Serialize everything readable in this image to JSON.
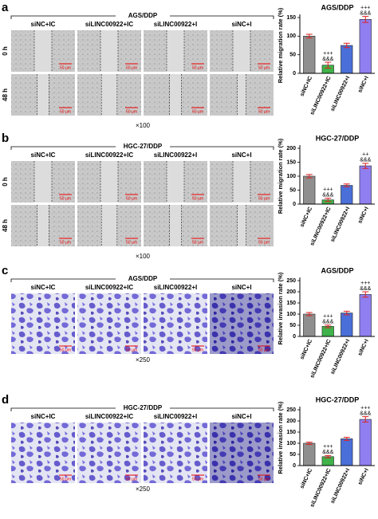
{
  "panels": [
    {
      "label": "a",
      "cell_line": "AGS/DDP",
      "columns": [
        "siNC+IC",
        "siLINC00922+IC",
        "siLINC00922+I",
        "siNC+I"
      ],
      "rows": [
        "0 h",
        "48 h"
      ],
      "scale_bar": "50 μm",
      "magnification": "×100"
    },
    {
      "label": "b",
      "cell_line": "HGC-27/DDP",
      "columns": [
        "siNC+IC",
        "siLINC00922+IC",
        "siLINC00922+I",
        "siNC+I"
      ],
      "rows": [
        "0 h",
        "48 h"
      ],
      "scale_bar": "50 μm",
      "magnification": "×100"
    },
    {
      "label": "c",
      "cell_line": "AGS/DDP",
      "columns": [
        "siNC+IC",
        "siLINC00922+IC",
        "siLINC00922+I",
        "siNC+I"
      ],
      "scale_bar": "50 μm",
      "magnification": "×250"
    },
    {
      "label": "d",
      "cell_line": "HGC-27/DDP",
      "columns": [
        "siNC+IC",
        "siLINC00922+IC",
        "siLINC00922+I",
        "siNC+I"
      ],
      "scale_bar": "50 μm",
      "magnification": "×250"
    }
  ],
  "chart_data": [
    {
      "type": "bar",
      "title": "AGS/DDP",
      "y_label": "Relative migration rate (%)",
      "categories": [
        "siNC+IC",
        "siLINC00922+IC",
        "siLINC00922+I",
        "siNC+I"
      ],
      "values": [
        100,
        22,
        75,
        145
      ],
      "errors": [
        5,
        8,
        6,
        8
      ],
      "colors": [
        "#8f8f8f",
        "#3fb24a",
        "#4a6fd8",
        "#8f7ff0"
      ],
      "annotations": [
        null,
        [
          "+++",
          "&&&"
        ],
        null,
        [
          "+++",
          "&&&"
        ]
      ],
      "ylim": [
        0,
        150
      ],
      "yticks": [
        0,
        50,
        100,
        150
      ]
    },
    {
      "type": "bar",
      "title": "HGC-27/DDP",
      "y_label": "Relative migration rate (%)",
      "categories": [
        "siNC+IC",
        "siLINC00922+IC",
        "siLINC00922+I",
        "siNC+I"
      ],
      "values": [
        100,
        15,
        67,
        137
      ],
      "errors": [
        6,
        6,
        5,
        9
      ],
      "colors": [
        "#8f8f8f",
        "#3fb24a",
        "#4a6fd8",
        "#8f7ff0"
      ],
      "annotations": [
        null,
        [
          "+++",
          "&&&"
        ],
        null,
        [
          "++",
          "&&&"
        ]
      ],
      "ylim": [
        0,
        200
      ],
      "yticks": [
        0,
        50,
        100,
        150,
        200
      ]
    },
    {
      "type": "bar",
      "title": "AGS/DDP",
      "y_label": "Relative invasion rate (%)",
      "categories": [
        "siNC+IC",
        "siLINC00922+IC",
        "siLINC00922+I",
        "siNC+I"
      ],
      "values": [
        100,
        45,
        105,
        188
      ],
      "errors": [
        7,
        6,
        8,
        12
      ],
      "colors": [
        "#8f8f8f",
        "#3fb24a",
        "#4a6fd8",
        "#8f7ff0"
      ],
      "annotations": [
        null,
        [
          "+++",
          "&&&"
        ],
        null,
        [
          "+++",
          "&&&"
        ]
      ],
      "ylim": [
        0,
        250
      ],
      "yticks": [
        0,
        50,
        100,
        150,
        200,
        250
      ]
    },
    {
      "type": "bar",
      "title": "HGC-27/DDP",
      "y_label": "Relative invasion rate (%)",
      "categories": [
        "siNC+IC",
        "siLINC00922+IC",
        "siLINC00922+I",
        "siNC+I"
      ],
      "values": [
        100,
        40,
        120,
        207
      ],
      "errors": [
        5,
        5,
        7,
        12
      ],
      "colors": [
        "#8f8f8f",
        "#3fb24a",
        "#4a6fd8",
        "#8f7ff0"
      ],
      "annotations": [
        null,
        [
          "+++",
          "&&&"
        ],
        null,
        [
          "+++",
          "&&&"
        ]
      ],
      "ylim": [
        0,
        250
      ],
      "yticks": [
        0,
        50,
        100,
        150,
        200,
        250
      ]
    }
  ]
}
